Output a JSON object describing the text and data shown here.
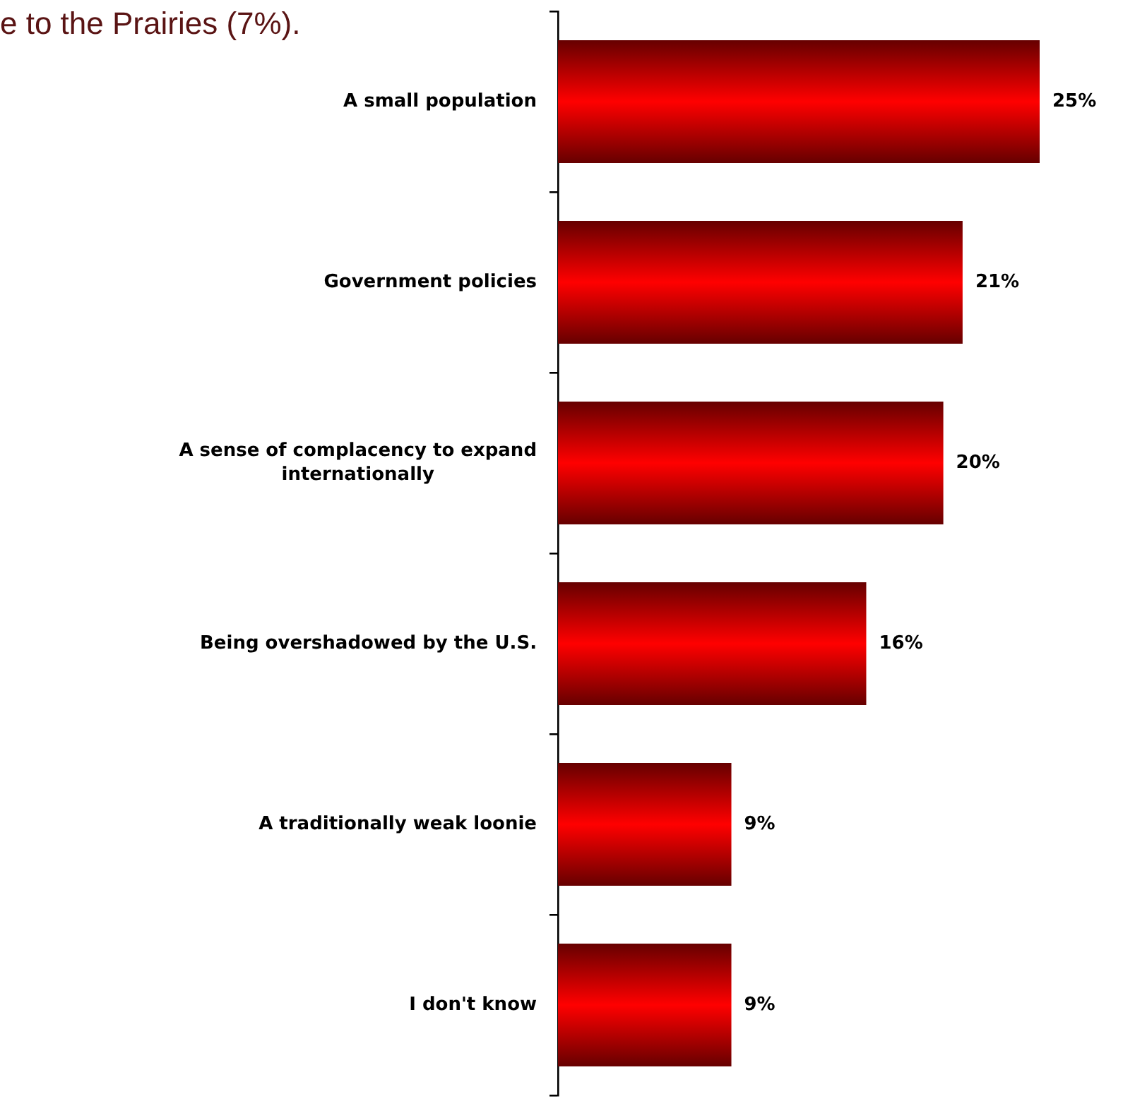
{
  "chart_data": {
    "type": "bar",
    "orientation": "horizontal",
    "title": "e to the Prairies (7%).",
    "categories": [
      "A small population",
      "Government policies",
      "A sense of complacency to expand internationally",
      "Being overshadowed by the U.S.",
      "A traditionally weak loonie",
      "I don't know"
    ],
    "values": [
      25,
      21,
      20,
      16,
      9,
      9
    ],
    "value_labels": [
      "25%",
      "21%",
      "20%",
      "16%",
      "9%",
      "9%"
    ],
    "color": "#ff0000",
    "grid": false,
    "legend": false
  }
}
